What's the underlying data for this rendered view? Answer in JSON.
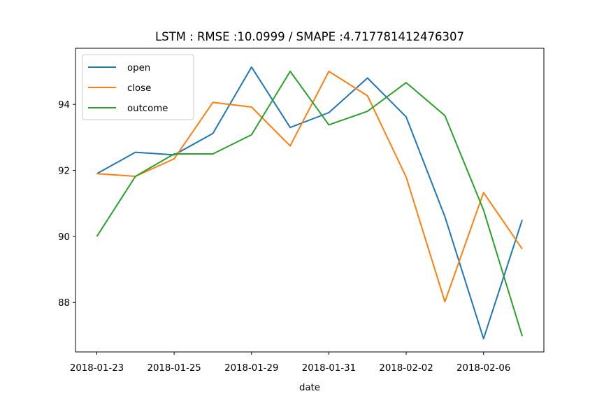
{
  "chart_data": {
    "type": "line",
    "title": "LSTM : RMSE :10.0999 / SMAPE :4.717781412476307",
    "xlabel": "date",
    "ylabel": "",
    "x_tick_labels": [
      "2018-01-23",
      "2018-01-25",
      "2018-01-29",
      "2018-01-31",
      "2018-02-02",
      "2018-02-06"
    ],
    "y_ticks": [
      88,
      90,
      92,
      94
    ],
    "ylim": [
      86.5,
      95.7
    ],
    "point_count": 12,
    "grid": false,
    "legend_position": "top-left",
    "series": [
      {
        "name": "open",
        "color": "#1f77b4",
        "values": [
          91.9,
          92.55,
          92.47,
          93.12,
          95.13,
          93.3,
          93.75,
          94.8,
          93.62,
          90.6,
          86.9,
          90.5
        ]
      },
      {
        "name": "close",
        "color": "#ff7f0e",
        "values": [
          91.9,
          91.82,
          92.35,
          94.06,
          93.92,
          92.74,
          95.0,
          94.26,
          91.8,
          88.02,
          91.33,
          89.62
        ]
      },
      {
        "name": "outcome",
        "color": "#2ca02c",
        "values": [
          90.0,
          91.82,
          92.5,
          92.5,
          93.08,
          95.0,
          93.38,
          93.79,
          94.66,
          93.66,
          90.8,
          86.98
        ]
      }
    ]
  }
}
